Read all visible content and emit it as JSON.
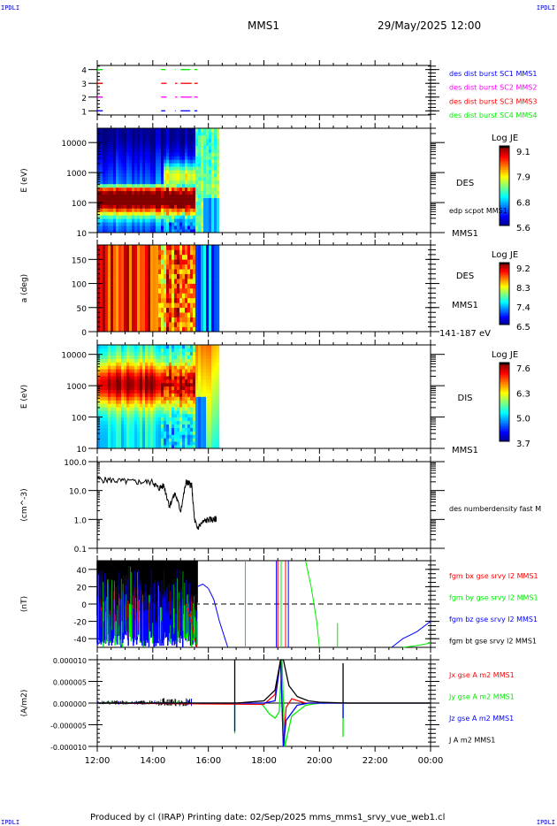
{
  "header": {
    "corner_tl": "IPDLI",
    "corner_tr": "IPDLI",
    "corner_bl": "IPDLI",
    "corner_br": "IPDLI",
    "spacecraft": "MMS1",
    "datetime": "29/May/2025 12:00"
  },
  "footer": {
    "text": "Produced by cl (IRAP)   Printing date: 02/Sep/2025   mms_mms1_srvy_vue_web1.cl"
  },
  "colors": {
    "corner_text": "#0000cc",
    "red": "#ff0000",
    "green": "#00ee00",
    "blue": "#0000ff",
    "magenta": "#ff00ff",
    "black": "#000000"
  },
  "chart_data": [
    {
      "id": "burst",
      "type": "line",
      "title": "Burst availability",
      "ylabel": "",
      "ylim": [
        0.7,
        4.3
      ],
      "yticks": [
        "1",
        "2",
        "3",
        "4"
      ],
      "legend": [
        {
          "label": "des dist burst SC1 MMS1",
          "color": "#0000ff"
        },
        {
          "label": "des dist burst SC2 MMS2",
          "color": "#ff00ff"
        },
        {
          "label": "des dist burst SC3 MMS3",
          "color": "#ff0000"
        },
        {
          "label": "des dist burst SC4 MMS4",
          "color": "#00ee00"
        }
      ],
      "series": [
        {
          "name": "SC1",
          "level": 1,
          "color": "#0000ff",
          "intervals_h": [
            [
              12.0,
              12.2
            ],
            [
              14.3,
              14.45
            ],
            [
              14.8,
              14.82
            ],
            [
              15.0,
              15.35
            ],
            [
              15.5,
              15.6
            ]
          ]
        },
        {
          "name": "SC2",
          "level": 2,
          "color": "#ff00ff",
          "intervals_h": [
            [
              12.0,
              12.2
            ],
            [
              14.3,
              14.5
            ],
            [
              14.8,
              14.88
            ],
            [
              15.0,
              15.4
            ],
            [
              15.5,
              15.62
            ]
          ]
        },
        {
          "name": "SC3",
          "level": 3,
          "color": "#ff0000",
          "intervals_h": [
            [
              12.0,
              12.2
            ],
            [
              14.3,
              14.5
            ],
            [
              14.8,
              14.88
            ],
            [
              15.0,
              15.4
            ],
            [
              15.5,
              15.62
            ]
          ]
        },
        {
          "name": "SC4",
          "level": 4,
          "color": "#00ee00",
          "intervals_h": [
            [
              12.0,
              12.2
            ],
            [
              14.3,
              14.45
            ],
            [
              14.8,
              14.82
            ],
            [
              15.0,
              15.35
            ],
            [
              15.5,
              15.6
            ]
          ]
        }
      ]
    },
    {
      "id": "des_energy",
      "type": "heatmap",
      "ylabel": "E (eV)",
      "yscale": "log",
      "ylim": [
        10,
        30000
      ],
      "yticks": [
        "10",
        "100",
        "1000",
        "10000"
      ],
      "right_labels": [
        "DES",
        "edp scpot MMS1",
        "MMS1"
      ],
      "colorbar": {
        "title": "Log JE",
        "ticks": [
          "9.1",
          "7.9",
          "6.8",
          "5.6"
        ],
        "range": [
          5.6,
          9.3
        ]
      },
      "data_end_h": 16.35,
      "description": "Electron energy spectrogram: strong flux (red) ~40-400 eV until ~15:30, then broad green flux to 16:20"
    },
    {
      "id": "des_pitch",
      "type": "heatmap",
      "ylabel": "a (deg)",
      "ylim": [
        0,
        180
      ],
      "yticks": [
        "0",
        "50",
        "100",
        "150"
      ],
      "right_labels": [
        "DES",
        "MMS1",
        "141-187 eV"
      ],
      "colorbar": {
        "title": "Log JE",
        "ticks": [
          "9.2",
          "8.3",
          "7.4",
          "6.5"
        ],
        "range": [
          6.5,
          9.4
        ]
      },
      "data_end_h": 16.35,
      "description": "Pitch angle distribution: red/orange until ~15:30, blue after"
    },
    {
      "id": "dis_energy",
      "type": "heatmap",
      "ylabel": "E (eV)",
      "yscale": "log",
      "ylim": [
        10,
        20000
      ],
      "yticks": [
        "10",
        "100",
        "1000",
        "10000"
      ],
      "right_labels": [
        "DIS",
        "MMS1"
      ],
      "colorbar": {
        "title": "Log JE",
        "ticks": [
          "7.6",
          "6.3",
          "5.0",
          "3.7"
        ],
        "range": [
          3.7,
          7.9
        ]
      },
      "data_end_h": 16.35,
      "description": "Ion energy spectrogram: red flux ~300-8000 eV until ~15:30"
    },
    {
      "id": "density",
      "type": "line",
      "ylabel": "(cm^-3)",
      "yscale": "log",
      "ylim": [
        0.1,
        100
      ],
      "yticks": [
        "0.1",
        "1.0",
        "10.0",
        "100.0"
      ],
      "legend": [
        {
          "label": "des numberdensity fast M",
          "color": "#000000"
        }
      ],
      "x_h": [
        12.0,
        12.5,
        13.0,
        13.5,
        14.0,
        14.2,
        14.4,
        14.6,
        14.8,
        15.0,
        15.2,
        15.3,
        15.4,
        15.5,
        15.6,
        15.8,
        16.0,
        16.2,
        16.3
      ],
      "values": [
        25,
        23,
        21,
        20,
        20,
        12,
        15,
        3,
        8,
        2,
        20,
        18,
        15,
        1.0,
        0.5,
        0.8,
        1.0,
        1.0,
        1.1
      ]
    },
    {
      "id": "bfield",
      "type": "line",
      "ylabel": "(nT)",
      "ylim": [
        -50,
        50
      ],
      "yticks": [
        "-40",
        "-20",
        "0",
        "20",
        "40"
      ],
      "reference_line": 0,
      "legend": [
        {
          "label": "fgm bx gse srvy l2 MMS1",
          "color": "#ff0000"
        },
        {
          "label": "fgm by gse srvy l2 MMS1",
          "color": "#00ee00"
        },
        {
          "label": "fgm bz gse srvy l2 MMS1",
          "color": "#0000ff"
        },
        {
          "label": "fgm bt gse srvy l2 MMS1",
          "color": "#000000"
        }
      ],
      "series": [
        {
          "name": "bz",
          "color": "#0000ff",
          "x_h": [
            15.6,
            15.8,
            16.0,
            16.2,
            16.4,
            16.6,
            16.7
          ],
          "values": [
            20,
            23,
            18,
            5,
            -20,
            -40,
            -50
          ]
        },
        {
          "name": "bx",
          "color": "#ff0000",
          "x_h": [
            15.2,
            15.4,
            15.5,
            15.6
          ],
          "values": [
            0,
            -20,
            -40,
            -50
          ]
        },
        {
          "name": "by",
          "color": "#00ee00",
          "x_h": [
            19.5,
            19.7,
            19.9,
            20.0
          ],
          "values": [
            50,
            20,
            -20,
            -50
          ]
        },
        {
          "name": "bz_late",
          "color": "#0000ff",
          "x_h": [
            22.6,
            23.0,
            23.5,
            24.0
          ],
          "values": [
            -50,
            -40,
            -32,
            -20
          ]
        },
        {
          "name": "by_late",
          "color": "#00ee00",
          "x_h": [
            23.0,
            23.5,
            24.0
          ],
          "values": [
            -50,
            -48,
            -45
          ]
        }
      ]
    },
    {
      "id": "current",
      "type": "line",
      "ylabel": "(A/m2)",
      "ylim": [
        -1e-05,
        1e-05
      ],
      "yticks": [
        "-0.000010",
        "-0.000005",
        "0.000000",
        "0.000005",
        "0.000010"
      ],
      "xticks": [
        "12:00",
        "14:00",
        "16:00",
        "18:00",
        "20:00",
        "22:00",
        "00:00"
      ],
      "legend": [
        {
          "label": "Jx gse A m2 MMS1",
          "color": "#ff0000"
        },
        {
          "label": "Jy gse A m2 MMS1",
          "color": "#00ee00"
        },
        {
          "label": "Jz gse A m2 MMS1",
          "color": "#0000ff"
        },
        {
          "label": "J A m2 MMS1",
          "color": "#000000"
        }
      ],
      "series": [
        {
          "name": "J",
          "color": "#000000",
          "x_h": [
            12,
            15.5,
            17.0,
            18.0,
            18.4,
            18.6,
            18.7,
            18.9,
            19.2,
            19.6,
            20.0,
            21.0,
            24.0
          ],
          "values": [
            0,
            0,
            0,
            5e-07,
            3e-06,
            1e-05,
            1e-05,
            4e-06,
            1.5e-06,
            5e-07,
            2e-07,
            0,
            0
          ]
        },
        {
          "name": "Jy",
          "color": "#00ee00",
          "x_h": [
            12,
            17.9,
            18.2,
            18.4,
            18.55,
            18.65,
            18.75,
            19.0,
            19.5,
            20.0,
            24.0
          ],
          "values": [
            0,
            0,
            -2.5e-06,
            -3.5e-06,
            -2e-06,
            1e-05,
            -1e-05,
            -3e-06,
            -5e-07,
            0,
            0
          ]
        },
        {
          "name": "Jx",
          "color": "#ff0000",
          "x_h": [
            12,
            18.0,
            18.4,
            18.6,
            18.7,
            18.8,
            19.0,
            19.5,
            24.0
          ],
          "values": [
            0,
            -3e-07,
            2e-06,
            1e-05,
            -1e-05,
            -1e-06,
            1e-06,
            0,
            0
          ]
        },
        {
          "name": "Jz",
          "color": "#0000ff",
          "x_h": [
            12,
            18.0,
            18.4,
            18.6,
            18.7,
            18.8,
            19.2,
            19.6,
            24.0
          ],
          "values": [
            0,
            0,
            5e-07,
            1e-05,
            -1e-05,
            -4e-06,
            -5e-07,
            0,
            0
          ]
        }
      ],
      "spikes": [
        {
          "x_h": 16.95,
          "J_max": 1e-05,
          "Jz_min": -6.5e-06,
          "Jy_min": -7e-06
        },
        {
          "x_h": 20.85,
          "J_max": 9.2e-06,
          "Jz_min": -3.5e-06,
          "Jy_min": -7.8e-06
        }
      ]
    }
  ],
  "time_axis": {
    "start_h": 12,
    "end_h": 24,
    "labels": [
      "12:00",
      "14:00",
      "16:00",
      "18:00",
      "20:00",
      "22:00",
      "00:00"
    ]
  }
}
